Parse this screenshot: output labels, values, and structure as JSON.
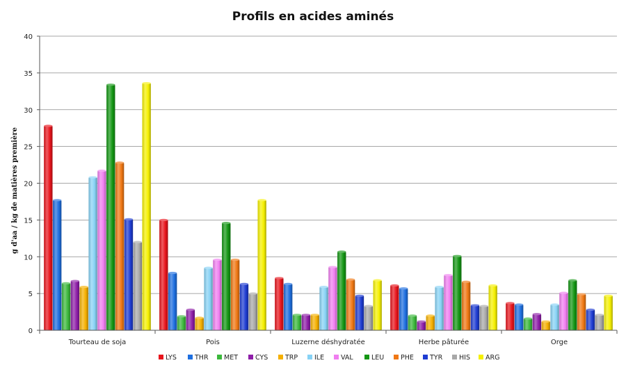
{
  "chart_data": {
    "type": "bar",
    "title": "Profils en acides aminés",
    "xlabel": "",
    "ylabel": "g d'aa / kg de matières première",
    "ylim": [
      0,
      40
    ],
    "yticks": [
      0,
      5,
      10,
      15,
      20,
      25,
      30,
      35,
      40
    ],
    "grid": true,
    "legend_position": "bottom",
    "categories": [
      "Tourteau de soja",
      "Pois",
      "Luzerne déshydratée",
      "Herbe pâturée",
      "Orge"
    ],
    "series": [
      {
        "name": "LYS",
        "color": "#e8141c",
        "values": [
          27.8,
          15.0,
          7.1,
          6.1,
          3.7
        ]
      },
      {
        "name": "THR",
        "color": "#1e6fe0",
        "values": [
          17.7,
          7.8,
          6.3,
          5.7,
          3.5
        ]
      },
      {
        "name": "MET",
        "color": "#3cb83c",
        "values": [
          6.4,
          1.9,
          2.1,
          2.0,
          1.6
        ]
      },
      {
        "name": "CYS",
        "color": "#8e1ea8",
        "values": [
          6.7,
          2.8,
          2.1,
          1.2,
          2.2
        ]
      },
      {
        "name": "TRP",
        "color": "#f5b000",
        "values": [
          5.9,
          1.7,
          2.1,
          2.0,
          1.2
        ]
      },
      {
        "name": "ILE",
        "color": "#87d2f5",
        "values": [
          20.8,
          8.5,
          5.9,
          5.9,
          3.5
        ]
      },
      {
        "name": "VAL",
        "color": "#f07ef0",
        "values": [
          21.7,
          9.6,
          8.6,
          7.5,
          5.1
        ]
      },
      {
        "name": "LEU",
        "color": "#149614",
        "values": [
          33.4,
          14.6,
          10.7,
          10.1,
          6.8
        ]
      },
      {
        "name": "PHE",
        "color": "#f07814",
        "values": [
          22.8,
          9.6,
          6.9,
          6.6,
          4.9
        ]
      },
      {
        "name": "TYR",
        "color": "#1e3cd2",
        "values": [
          15.1,
          6.3,
          4.7,
          3.4,
          2.8
        ]
      },
      {
        "name": "HIS",
        "color": "#a8a8a8",
        "values": [
          12.0,
          5.0,
          3.3,
          3.3,
          2.1
        ]
      },
      {
        "name": "ARG",
        "color": "#f5f000",
        "values": [
          33.6,
          17.7,
          6.8,
          6.1,
          4.7
        ]
      }
    ]
  }
}
